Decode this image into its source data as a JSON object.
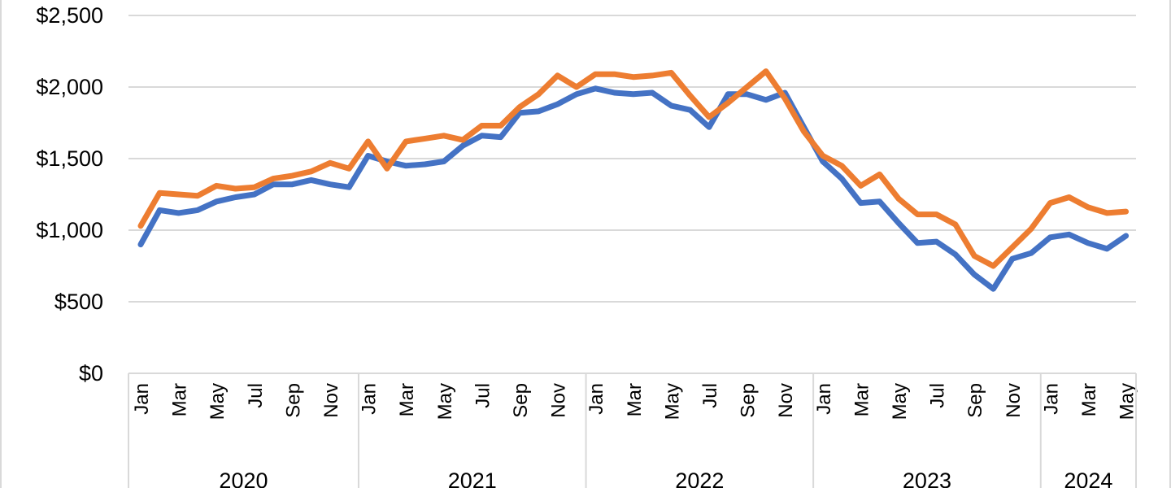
{
  "chart_data": {
    "type": "line",
    "ylim": [
      0,
      2500
    ],
    "y_ticks": [
      "$0",
      "$500",
      "$1,000",
      "$1,500",
      "$2,000",
      "$2,500"
    ],
    "y_tick_values": [
      0,
      500,
      1000,
      1500,
      2000,
      2500
    ],
    "grid": true,
    "month_labels": [
      "Jan",
      "Mar",
      "May",
      "Jul",
      "Sep",
      "Nov"
    ],
    "years": [
      "2020",
      "2021",
      "2022",
      "2023",
      "2024"
    ],
    "x": [
      "2020-01",
      "2020-02",
      "2020-03",
      "2020-04",
      "2020-05",
      "2020-06",
      "2020-07",
      "2020-08",
      "2020-09",
      "2020-10",
      "2020-11",
      "2020-12",
      "2021-01",
      "2021-02",
      "2021-03",
      "2021-04",
      "2021-05",
      "2021-06",
      "2021-07",
      "2021-08",
      "2021-09",
      "2021-10",
      "2021-11",
      "2021-12",
      "2022-01",
      "2022-02",
      "2022-03",
      "2022-04",
      "2022-05",
      "2022-06",
      "2022-07",
      "2022-08",
      "2022-09",
      "2022-10",
      "2022-11",
      "2022-12",
      "2023-01",
      "2023-02",
      "2023-03",
      "2023-04",
      "2023-05",
      "2023-06",
      "2023-07",
      "2023-08",
      "2023-09",
      "2023-10",
      "2023-11",
      "2023-12",
      "2024-01",
      "2024-02",
      "2024-03",
      "2024-04",
      "2024-05"
    ],
    "series": [
      {
        "color": "#4472C4",
        "values": [
          900,
          1140,
          1120,
          1140,
          1200,
          1230,
          1250,
          1320,
          1320,
          1350,
          1320,
          1300,
          1520,
          1480,
          1450,
          1460,
          1480,
          1590,
          1660,
          1650,
          1820,
          1830,
          1880,
          1950,
          1990,
          1960,
          1950,
          1960,
          1870,
          1840,
          1720,
          1950,
          1950,
          1910,
          1960,
          1720,
          1480,
          1360,
          1190,
          1200,
          1050,
          910,
          920,
          830,
          690,
          590,
          800,
          840,
          950,
          970,
          910,
          870,
          960
        ]
      },
      {
        "color": "#ED7D31",
        "values": [
          1030,
          1260,
          1250,
          1240,
          1310,
          1290,
          1300,
          1360,
          1380,
          1410,
          1470,
          1430,
          1620,
          1430,
          1620,
          1640,
          1660,
          1630,
          1730,
          1730,
          1860,
          1950,
          2080,
          2000,
          2090,
          2090,
          2070,
          2080,
          2100,
          1940,
          1790,
          1890,
          2000,
          2110,
          1920,
          1690,
          1520,
          1450,
          1310,
          1390,
          1220,
          1110,
          1110,
          1040,
          820,
          750,
          880,
          1010,
          1190,
          1230,
          1160,
          1120,
          1130
        ]
      }
    ]
  }
}
